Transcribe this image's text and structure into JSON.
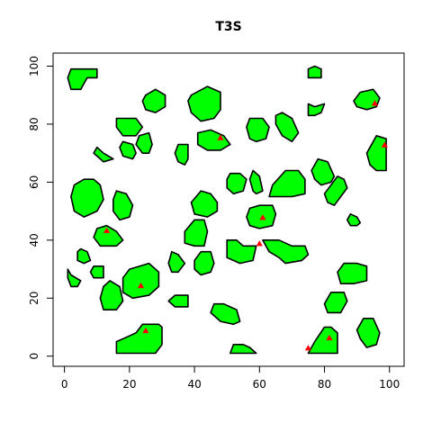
{
  "chart_data": {
    "type": "scatter",
    "title": "T3S",
    "xlabel": "",
    "ylabel": "",
    "xlim": [
      -3.5,
      104.5
    ],
    "ylim": [
      -3.5,
      104.5
    ],
    "x_ticks": [
      0,
      20,
      40,
      60,
      80,
      100
    ],
    "y_ticks": [
      0,
      20,
      40,
      60,
      80,
      100
    ],
    "grid": false,
    "polygon_fill": "#00ff00",
    "polygon_stroke": "#000000",
    "marker_color": "#ff0000",
    "marker_shape": "triangle",
    "polygons": [
      [
        [
          1,
          96
        ],
        [
          2,
          99
        ],
        [
          10,
          99
        ],
        [
          10,
          96
        ],
        [
          7,
          96
        ],
        [
          5,
          92
        ],
        [
          2,
          92
        ]
      ],
      [
        [
          77,
          100
        ],
        [
          79,
          99
        ],
        [
          79,
          96
        ],
        [
          77,
          96
        ],
        [
          75,
          96
        ],
        [
          75,
          99
        ]
      ],
      [
        [
          25,
          90
        ],
        [
          28,
          92
        ],
        [
          31,
          90
        ],
        [
          31,
          86
        ],
        [
          28,
          84
        ],
        [
          25,
          85
        ],
        [
          24,
          88
        ]
      ],
      [
        [
          39,
          90
        ],
        [
          44,
          93
        ],
        [
          48,
          91
        ],
        [
          48,
          85
        ],
        [
          46,
          82
        ],
        [
          42,
          81
        ],
        [
          39,
          84
        ],
        [
          38,
          88
        ]
      ],
      [
        [
          91,
          91
        ],
        [
          95,
          92
        ],
        [
          97,
          89
        ],
        [
          96,
          86
        ],
        [
          93,
          85
        ],
        [
          90,
          86
        ],
        [
          89,
          88
        ]
      ],
      [
        [
          75,
          87
        ],
        [
          77,
          86
        ],
        [
          80,
          87
        ],
        [
          79,
          84
        ],
        [
          77,
          83
        ],
        [
          75,
          83
        ]
      ],
      [
        [
          18,
          82
        ],
        [
          22,
          82
        ],
        [
          24,
          79
        ],
        [
          22,
          76
        ],
        [
          18,
          76
        ],
        [
          16,
          79
        ],
        [
          16,
          82
        ]
      ],
      [
        [
          67,
          84
        ],
        [
          70,
          82
        ],
        [
          72,
          77
        ],
        [
          70,
          74
        ],
        [
          67,
          76
        ],
        [
          65,
          80
        ],
        [
          65,
          83
        ]
      ],
      [
        [
          57,
          82
        ],
        [
          61,
          82
        ],
        [
          63,
          79
        ],
        [
          62,
          75
        ],
        [
          59,
          74
        ],
        [
          57,
          75
        ],
        [
          56,
          79
        ]
      ],
      [
        [
          41,
          77
        ],
        [
          45,
          78
        ],
        [
          49,
          76
        ],
        [
          51,
          73
        ],
        [
          48,
          71
        ],
        [
          44,
          71
        ],
        [
          41,
          73
        ]
      ],
      [
        [
          23,
          76
        ],
        [
          26,
          77
        ],
        [
          27,
          73
        ],
        [
          26,
          70
        ],
        [
          24,
          70
        ],
        [
          22,
          73
        ]
      ],
      [
        [
          10,
          72
        ],
        [
          12,
          70
        ],
        [
          15,
          68
        ],
        [
          12,
          67
        ],
        [
          10,
          69
        ],
        [
          9,
          70
        ]
      ],
      [
        [
          18,
          74
        ],
        [
          21,
          73
        ],
        [
          22,
          70
        ],
        [
          21,
          68
        ],
        [
          18,
          69
        ],
        [
          17,
          72
        ]
      ],
      [
        [
          96,
          76
        ],
        [
          99,
          75
        ],
        [
          99,
          64
        ],
        [
          96,
          64
        ],
        [
          94,
          66
        ],
        [
          93,
          70
        ]
      ],
      [
        [
          35,
          73
        ],
        [
          38,
          73
        ],
        [
          38,
          68
        ],
        [
          37,
          66
        ],
        [
          35,
          67
        ],
        [
          34,
          70
        ]
      ],
      [
        [
          78,
          68
        ],
        [
          81,
          67
        ],
        [
          83,
          62
        ],
        [
          82,
          60
        ],
        [
          79,
          59
        ],
        [
          77,
          61
        ],
        [
          76,
          64
        ]
      ],
      [
        [
          6,
          61
        ],
        [
          9,
          61
        ],
        [
          11,
          59
        ],
        [
          12,
          54
        ],
        [
          10,
          50
        ],
        [
          6,
          48
        ],
        [
          3,
          50
        ],
        [
          2,
          55
        ],
        [
          3,
          59
        ]
      ],
      [
        [
          68,
          64
        ],
        [
          72,
          64
        ],
        [
          74,
          61
        ],
        [
          74,
          56
        ],
        [
          70,
          55
        ],
        [
          65,
          55
        ],
        [
          63,
          55
        ],
        [
          64,
          59
        ]
      ],
      [
        [
          51,
          63
        ],
        [
          54,
          63
        ],
        [
          56,
          61
        ],
        [
          55,
          57
        ],
        [
          52,
          56
        ],
        [
          50,
          58
        ],
        [
          50,
          61
        ]
      ],
      [
        [
          58,
          64
        ],
        [
          60,
          62
        ],
        [
          61,
          57
        ],
        [
          59,
          56
        ],
        [
          58,
          57
        ],
        [
          57,
          61
        ]
      ],
      [
        [
          84,
          62
        ],
        [
          86,
          61
        ],
        [
          87,
          58
        ],
        [
          85,
          55
        ],
        [
          83,
          52
        ],
        [
          81,
          53
        ],
        [
          80,
          56
        ]
      ],
      [
        [
          16,
          57
        ],
        [
          19,
          56
        ],
        [
          21,
          52
        ],
        [
          20,
          48
        ],
        [
          17,
          47
        ],
        [
          15,
          50
        ],
        [
          15,
          54
        ]
      ],
      [
        [
          42,
          57
        ],
        [
          45,
          56
        ],
        [
          47,
          53
        ],
        [
          47,
          50
        ],
        [
          44,
          48
        ],
        [
          40,
          49
        ],
        [
          39,
          53
        ]
      ],
      [
        [
          60,
          52
        ],
        [
          64,
          52
        ],
        [
          65,
          49
        ],
        [
          64,
          45
        ],
        [
          60,
          44
        ],
        [
          57,
          45
        ],
        [
          56,
          48
        ],
        [
          57,
          51
        ]
      ],
      [
        [
          88,
          49
        ],
        [
          90,
          48
        ],
        [
          91,
          46
        ],
        [
          90,
          45
        ],
        [
          88,
          45
        ],
        [
          87,
          47
        ]
      ],
      [
        [
          40,
          47
        ],
        [
          43,
          47
        ],
        [
          44,
          43
        ],
        [
          43,
          38
        ],
        [
          40,
          38
        ],
        [
          37,
          39
        ],
        [
          37,
          43
        ]
      ],
      [
        [
          10,
          44
        ],
        [
          13,
          45
        ],
        [
          16,
          43
        ],
        [
          18,
          40
        ],
        [
          16,
          38
        ],
        [
          11,
          38
        ],
        [
          9,
          41
        ]
      ],
      [
        [
          50,
          40
        ],
        [
          53,
          40
        ],
        [
          55,
          38
        ],
        [
          59,
          38
        ],
        [
          58,
          33
        ],
        [
          54,
          32
        ],
        [
          50,
          34
        ],
        [
          50,
          38
        ]
      ],
      [
        [
          61,
          40
        ],
        [
          66,
          40
        ],
        [
          70,
          38
        ],
        [
          74,
          38
        ],
        [
          75,
          35
        ],
        [
          73,
          33
        ],
        [
          68,
          32
        ],
        [
          66,
          34
        ],
        [
          63,
          36
        ]
      ],
      [
        [
          5,
          37
        ],
        [
          7,
          36
        ],
        [
          8,
          33
        ],
        [
          6,
          32
        ],
        [
          4,
          33
        ],
        [
          4,
          36
        ]
      ],
      [
        [
          33,
          36
        ],
        [
          35,
          35
        ],
        [
          37,
          32
        ],
        [
          35,
          29
        ],
        [
          33,
          29
        ],
        [
          32,
          32
        ]
      ],
      [
        [
          42,
          36
        ],
        [
          45,
          36
        ],
        [
          46,
          32
        ],
        [
          45,
          29
        ],
        [
          42,
          28
        ],
        [
          40,
          30
        ],
        [
          40,
          33
        ]
      ],
      [
        [
          86,
          32
        ],
        [
          90,
          32
        ],
        [
          93,
          31
        ],
        [
          93,
          26
        ],
        [
          89,
          25
        ],
        [
          85,
          25
        ],
        [
          84,
          29
        ]
      ],
      [
        [
          9,
          31
        ],
        [
          12,
          31
        ],
        [
          12,
          27
        ],
        [
          9,
          27
        ],
        [
          8,
          29
        ]
      ],
      [
        [
          1,
          30
        ],
        [
          2,
          28
        ],
        [
          5,
          26
        ],
        [
          4,
          24
        ],
        [
          2,
          24
        ],
        [
          1,
          27
        ]
      ],
      [
        [
          20,
          30
        ],
        [
          26,
          32
        ],
        [
          29,
          29
        ],
        [
          29,
          24
        ],
        [
          26,
          21
        ],
        [
          21,
          20
        ],
        [
          18,
          22
        ],
        [
          18,
          27
        ]
      ],
      [
        [
          14,
          26
        ],
        [
          17,
          24
        ],
        [
          18,
          19
        ],
        [
          16,
          16
        ],
        [
          12,
          16
        ],
        [
          11,
          20
        ],
        [
          12,
          24
        ]
      ],
      [
        [
          34,
          21
        ],
        [
          38,
          21
        ],
        [
          38,
          17
        ],
        [
          34,
          17
        ],
        [
          32,
          19
        ]
      ],
      [
        [
          82,
          22
        ],
        [
          86,
          22
        ],
        [
          87,
          19
        ],
        [
          85,
          15
        ],
        [
          81,
          15
        ],
        [
          80,
          18
        ]
      ],
      [
        [
          46,
          18
        ],
        [
          49,
          18
        ],
        [
          53,
          16
        ],
        [
          54,
          12
        ],
        [
          52,
          11
        ],
        [
          48,
          12
        ],
        [
          45,
          15
        ]
      ],
      [
        [
          92,
          13
        ],
        [
          95,
          13
        ],
        [
          97,
          8
        ],
        [
          96,
          4
        ],
        [
          93,
          3
        ],
        [
          91,
          6
        ],
        [
          90,
          9
        ]
      ],
      [
        [
          24,
          11
        ],
        [
          26,
          11
        ],
        [
          29,
          11
        ],
        [
          30,
          10
        ],
        [
          30,
          4
        ],
        [
          28,
          1
        ],
        [
          24,
          1
        ],
        [
          16,
          1
        ],
        [
          16,
          5
        ],
        [
          20,
          7
        ],
        [
          22,
          8
        ]
      ],
      [
        [
          52,
          4
        ],
        [
          55,
          4
        ],
        [
          57,
          3
        ],
        [
          59,
          1
        ],
        [
          51,
          1
        ]
      ],
      [
        [
          80,
          10
        ],
        [
          82,
          10
        ],
        [
          84,
          8
        ],
        [
          84,
          4
        ],
        [
          84,
          1
        ],
        [
          75,
          1
        ],
        [
          77,
          5
        ]
      ]
    ],
    "points": [
      {
        "x": 95.5,
        "y": 87.2
      },
      {
        "x": 48,
        "y": 75.3
      },
      {
        "x": 98.5,
        "y": 72.8
      },
      {
        "x": 13,
        "y": 43.3
      },
      {
        "x": 61,
        "y": 47.8
      },
      {
        "x": 60,
        "y": 38.8
      },
      {
        "x": 23.5,
        "y": 24.3
      },
      {
        "x": 25,
        "y": 8.8
      },
      {
        "x": 81.5,
        "y": 6.3
      },
      {
        "x": 75,
        "y": 2.8
      }
    ]
  }
}
